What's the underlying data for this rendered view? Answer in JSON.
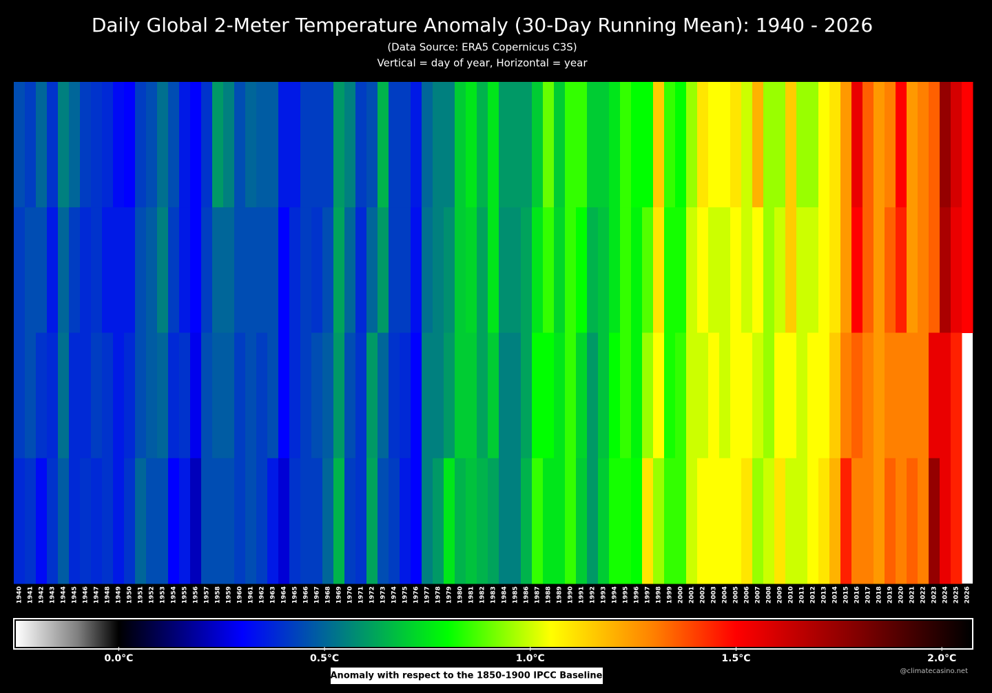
{
  "chart_data": {
    "type": "heatmap",
    "title": "Daily Global 2-Meter Temperature Anomaly (30-Day Running Mean): 1940 - 2026",
    "subtitle": "(Data Source: ERA5 Copernicus C3S)",
    "note": "Vertical = day of year, Horizontal = year",
    "categories": [
      "1940",
      "1941",
      "1942",
      "1943",
      "1944",
      "1945",
      "1946",
      "1947",
      "1948",
      "1949",
      "1950",
      "1951",
      "1952",
      "1953",
      "1954",
      "1955",
      "1956",
      "1957",
      "1958",
      "1959",
      "1960",
      "1961",
      "1962",
      "1963",
      "1964",
      "1965",
      "1966",
      "1967",
      "1968",
      "1969",
      "1970",
      "1971",
      "1972",
      "1973",
      "1974",
      "1975",
      "1976",
      "1977",
      "1978",
      "1979",
      "1980",
      "1981",
      "1982",
      "1983",
      "1984",
      "1985",
      "1986",
      "1987",
      "1988",
      "1989",
      "1990",
      "1991",
      "1992",
      "1993",
      "1994",
      "1995",
      "1996",
      "1997",
      "1998",
      "1999",
      "2000",
      "2001",
      "2002",
      "2003",
      "2004",
      "2005",
      "2006",
      "2007",
      "2008",
      "2009",
      "2010",
      "2011",
      "2012",
      "2013",
      "2014",
      "2015",
      "2016",
      "2017",
      "2018",
      "2019",
      "2020",
      "2021",
      "2022",
      "2023",
      "2024",
      "2025",
      "2026"
    ],
    "values": [
      [
        0.45,
        0.42,
        0.42,
        0.38
      ],
      [
        0.42,
        0.45,
        0.45,
        0.4
      ],
      [
        0.5,
        0.45,
        0.4,
        0.32
      ],
      [
        0.4,
        0.35,
        0.38,
        0.4
      ],
      [
        0.55,
        0.5,
        0.52,
        0.48
      ],
      [
        0.5,
        0.42,
        0.38,
        0.38
      ],
      [
        0.42,
        0.38,
        0.38,
        0.4
      ],
      [
        0.4,
        0.4,
        0.42,
        0.38
      ],
      [
        0.38,
        0.35,
        0.4,
        0.4
      ],
      [
        0.32,
        0.35,
        0.35,
        0.35
      ],
      [
        0.3,
        0.35,
        0.38,
        0.4
      ],
      [
        0.42,
        0.45,
        0.45,
        0.5
      ],
      [
        0.45,
        0.48,
        0.48,
        0.45
      ],
      [
        0.52,
        0.55,
        0.5,
        0.45
      ],
      [
        0.45,
        0.42,
        0.38,
        0.3
      ],
      [
        0.35,
        0.35,
        0.4,
        0.35
      ],
      [
        0.3,
        0.3,
        0.28,
        0.22
      ],
      [
        0.4,
        0.42,
        0.45,
        0.45
      ],
      [
        0.6,
        0.5,
        0.48,
        0.45
      ],
      [
        0.55,
        0.5,
        0.48,
        0.45
      ],
      [
        0.45,
        0.45,
        0.42,
        0.42
      ],
      [
        0.5,
        0.45,
        0.45,
        0.45
      ],
      [
        0.48,
        0.45,
        0.42,
        0.42
      ],
      [
        0.48,
        0.45,
        0.45,
        0.35
      ],
      [
        0.35,
        0.3,
        0.3,
        0.25
      ],
      [
        0.35,
        0.38,
        0.38,
        0.4
      ],
      [
        0.42,
        0.42,
        0.42,
        0.42
      ],
      [
        0.42,
        0.4,
        0.45,
        0.42
      ],
      [
        0.42,
        0.45,
        0.48,
        0.5
      ],
      [
        0.6,
        0.62,
        0.6,
        0.65
      ],
      [
        0.55,
        0.5,
        0.45,
        0.42
      ],
      [
        0.42,
        0.38,
        0.4,
        0.4
      ],
      [
        0.45,
        0.5,
        0.6,
        0.62
      ],
      [
        0.65,
        0.6,
        0.5,
        0.45
      ],
      [
        0.42,
        0.42,
        0.4,
        0.42
      ],
      [
        0.42,
        0.42,
        0.38,
        0.35
      ],
      [
        0.35,
        0.33,
        0.3,
        0.3
      ],
      [
        0.5,
        0.52,
        0.55,
        0.55
      ],
      [
        0.55,
        0.55,
        0.55,
        0.6
      ],
      [
        0.55,
        0.58,
        0.6,
        0.75
      ],
      [
        0.7,
        0.7,
        0.7,
        0.65
      ],
      [
        0.75,
        0.72,
        0.7,
        0.68
      ],
      [
        0.65,
        0.62,
        0.62,
        0.65
      ],
      [
        0.75,
        0.75,
        0.7,
        0.62
      ],
      [
        0.6,
        0.58,
        0.55,
        0.55
      ],
      [
        0.6,
        0.58,
        0.55,
        0.55
      ],
      [
        0.6,
        0.62,
        0.62,
        0.65
      ],
      [
        0.7,
        0.75,
        0.8,
        0.85
      ],
      [
        0.9,
        0.85,
        0.8,
        0.75
      ],
      [
        0.7,
        0.72,
        0.75,
        0.75
      ],
      [
        0.85,
        0.85,
        0.85,
        0.85
      ],
      [
        0.85,
        0.8,
        0.72,
        0.7
      ],
      [
        0.7,
        0.65,
        0.6,
        0.6
      ],
      [
        0.7,
        0.68,
        0.68,
        0.7
      ],
      [
        0.75,
        0.75,
        0.8,
        0.82
      ],
      [
        0.85,
        0.85,
        0.85,
        0.82
      ],
      [
        0.8,
        0.78,
        0.78,
        0.8
      ],
      [
        0.8,
        0.88,
        0.95,
        1.1
      ],
      [
        1.15,
        1.1,
        1.05,
        0.95
      ],
      [
        0.85,
        0.82,
        0.82,
        0.85
      ],
      [
        0.8,
        0.82,
        0.85,
        0.85
      ],
      [
        0.95,
        1.0,
        1.0,
        1.0
      ],
      [
        1.1,
        1.05,
        1.0,
        1.05
      ],
      [
        1.05,
        1.0,
        1.05,
        1.05
      ],
      [
        1.05,
        1.0,
        1.0,
        1.05
      ],
      [
        1.1,
        1.05,
        1.05,
        1.05
      ],
      [
        1.0,
        1.0,
        1.05,
        1.1
      ],
      [
        1.2,
        1.05,
        1.0,
        0.95
      ],
      [
        0.95,
        0.95,
        0.95,
        1.0
      ],
      [
        0.95,
        1.0,
        1.05,
        1.1
      ],
      [
        1.15,
        1.15,
        1.05,
        1.0
      ],
      [
        0.95,
        1.0,
        1.0,
        1.0
      ],
      [
        0.95,
        1.0,
        1.05,
        1.05
      ],
      [
        1.05,
        1.05,
        1.05,
        1.1
      ],
      [
        1.1,
        1.1,
        1.15,
        1.2
      ],
      [
        1.25,
        1.25,
        1.3,
        1.45
      ],
      [
        1.55,
        1.5,
        1.35,
        1.3
      ],
      [
        1.35,
        1.35,
        1.3,
        1.3
      ],
      [
        1.25,
        1.25,
        1.25,
        1.25
      ],
      [
        1.3,
        1.35,
        1.3,
        1.35
      ],
      [
        1.5,
        1.45,
        1.3,
        1.3
      ],
      [
        1.25,
        1.25,
        1.3,
        1.35
      ],
      [
        1.3,
        1.3,
        1.3,
        1.3
      ],
      [
        1.35,
        1.35,
        1.55,
        1.75
      ],
      [
        1.75,
        1.7,
        1.55,
        1.55
      ],
      [
        1.6,
        1.55,
        1.45,
        1.45
      ],
      [
        1.5,
        1.5,
        null,
        null
      ]
    ],
    "colorscale": [
      {
        "value": -0.25,
        "color": "#ffffff"
      },
      {
        "value": -0.1,
        "color": "#808080"
      },
      {
        "value": 0.0,
        "color": "#000000"
      },
      {
        "value": 0.15,
        "color": "#000080"
      },
      {
        "value": 0.3,
        "color": "#0000ff"
      },
      {
        "value": 0.8,
        "color": "#00ff00"
      },
      {
        "value": 1.05,
        "color": "#ffff00"
      },
      {
        "value": 1.3,
        "color": "#ff8000"
      },
      {
        "value": 1.5,
        "color": "#ff0000"
      },
      {
        "value": 1.8,
        "color": "#800000"
      },
      {
        "value": 2.07,
        "color": "#000000"
      }
    ],
    "clim": [
      -0.25,
      2.07
    ],
    "cticks": [
      {
        "value": 0,
        "label": "0.0°C"
      },
      {
        "value": 0.5,
        "label": "0.5°C"
      },
      {
        "value": 1,
        "label": "1.0°C"
      },
      {
        "value": 1.5,
        "label": "1.5°C"
      },
      {
        "value": 2,
        "label": "2.0°C"
      }
    ],
    "colorbar_label": "Anomaly with respect to the 1850-1900 IPCC Baseline",
    "watermark": "@climatecasino.net"
  }
}
